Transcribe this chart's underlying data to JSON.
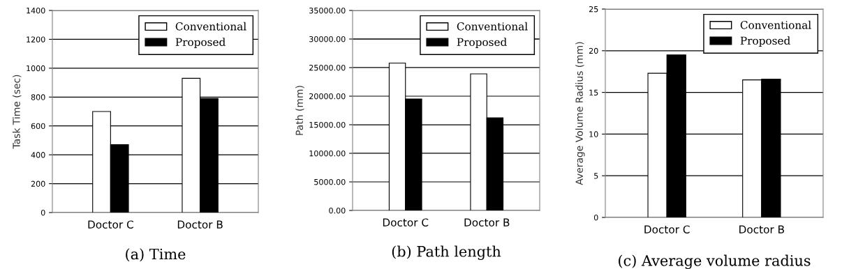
{
  "chart_data": [
    {
      "type": "bar",
      "title": "(a) Time",
      "ylabel": "Task Time (sec)",
      "categories": [
        "Doctor C",
        "Doctor B"
      ],
      "series": [
        {
          "name": "Conventional",
          "color": "#ffffff",
          "values": [
            700,
            930
          ]
        },
        {
          "name": "Proposed",
          "color": "#000000",
          "values": [
            470,
            790
          ]
        }
      ],
      "ylim": [
        0,
        1400
      ],
      "yticks": [
        0,
        200,
        400,
        600,
        800,
        1000,
        1200,
        1400
      ],
      "grid": "y",
      "legend": "top right"
    },
    {
      "type": "bar",
      "title": "(b) Path length",
      "ylabel": "Path (mm)",
      "categories": [
        "Doctor C",
        "Doctor B"
      ],
      "series": [
        {
          "name": "Conventional",
          "color": "#ffffff",
          "values": [
            25800,
            23900
          ]
        },
        {
          "name": "Proposed",
          "color": "#000000",
          "values": [
            19500,
            16200
          ]
        }
      ],
      "ylim": [
        0,
        35000
      ],
      "yticks": [
        {
          "value": 0,
          "label": "0.00"
        },
        {
          "value": 5000,
          "label": "5000.00"
        },
        {
          "value": 10000,
          "label": "10000.00"
        },
        {
          "value": 15000,
          "label": "15000.00"
        },
        {
          "value": 20000,
          "label": "20000.00"
        },
        {
          "value": 25000,
          "label": "25000.00"
        },
        {
          "value": 30000,
          "label": "30000.00"
        },
        {
          "value": 35000,
          "label": "35000.00"
        }
      ],
      "grid": "y",
      "legend": "top right"
    },
    {
      "type": "bar",
      "title": "(c) Average volume radius",
      "ylabel": "Average Volume Radius (mm)",
      "categories": [
        "Doctor C",
        "Doctor B"
      ],
      "series": [
        {
          "name": "Conventional",
          "color": "#ffffff",
          "values": [
            17.3,
            16.5
          ]
        },
        {
          "name": "Proposed",
          "color": "#000000",
          "values": [
            19.5,
            16.6
          ]
        }
      ],
      "ylim": [
        0,
        25
      ],
      "yticks": [
        0,
        5,
        10,
        15,
        20,
        25
      ],
      "grid": "y",
      "legend": "top right"
    }
  ]
}
